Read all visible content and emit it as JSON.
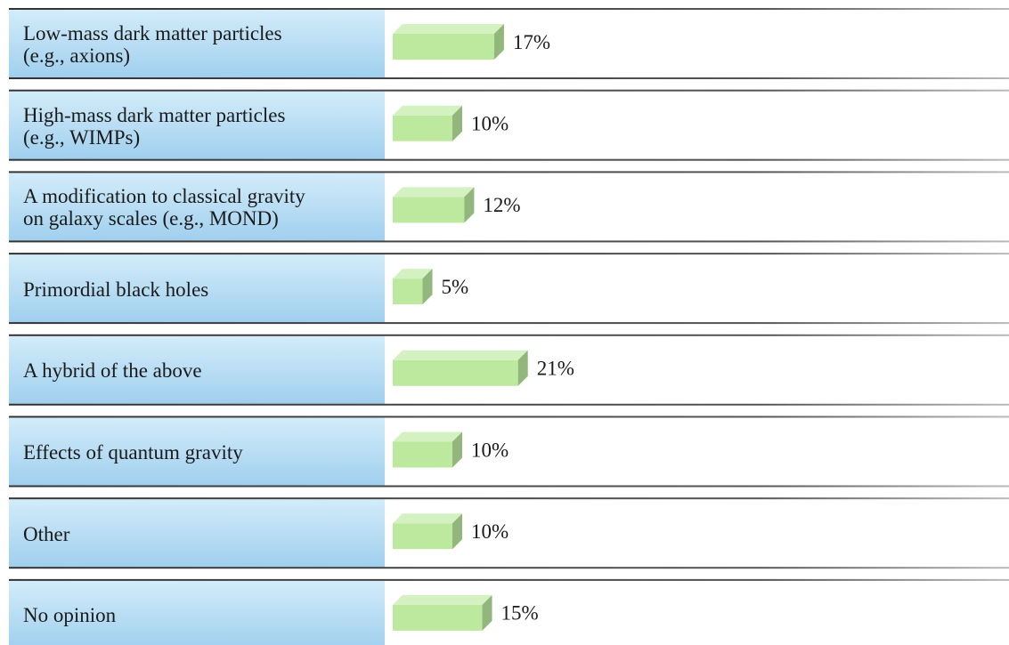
{
  "chart_data": {
    "type": "bar",
    "categories": [
      "Low-mass dark matter particles\n(e.g., axions)",
      "High-mass dark matter particles\n(e.g., WIMPs)",
      "A modification to classical gravity\non galaxy scales (e.g., MOND)",
      "Primordial black holes",
      "A hybrid of the above",
      "Effects of quantum gravity",
      "Other",
      "No opinion"
    ],
    "values": [
      17,
      10,
      12,
      5,
      21,
      10,
      10,
      15
    ],
    "value_labels": [
      "17%",
      "10%",
      "12%",
      "5%",
      "21%",
      "10%",
      "10%",
      "15%"
    ],
    "color": "#bde99f"
  }
}
